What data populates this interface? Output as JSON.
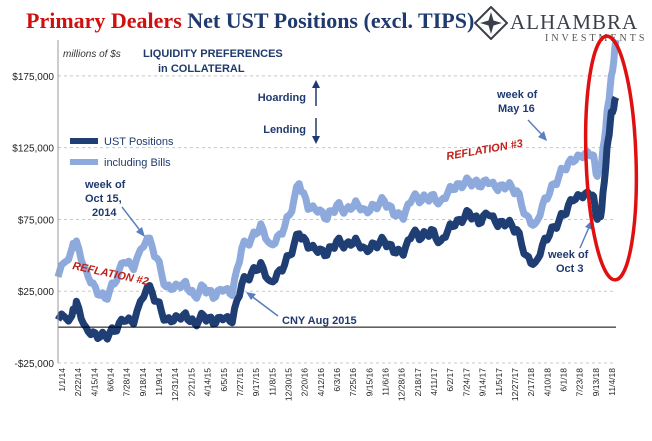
{
  "header": {
    "title_part1": "Primary Dealers",
    "title_part2": "Net UST Positions (excl. TIPS)",
    "logo_name": "ALHAMBRA",
    "logo_sub": "INVESTMENTS",
    "logo_icon": "diamond-star-icon"
  },
  "colors": {
    "dark_series": "#1f3e73",
    "light_series": "#8eaadc",
    "title_red": "#d01010",
    "title_blue": "#1f3a6e",
    "annotation_red": "#c0201a",
    "annotation_blue": "#1f3a6e",
    "circle": "#e01010",
    "grid": "#c8c8c8"
  },
  "chart_data": {
    "type": "area",
    "unit_note": "millions of $s",
    "ylim": [
      -25000,
      200000
    ],
    "yticks": [
      -25000,
      25000,
      75000,
      125000,
      175000
    ],
    "ytick_labels": [
      "-$25,000",
      "$25,000",
      "$75,000",
      "$125,000",
      "$175,000"
    ],
    "grid": "horizontal dashed",
    "x_start": "2014-01-01",
    "x_end": "2018-11-30",
    "xtick_labels": [
      "1/1/14",
      "2/22/14",
      "4/15/14",
      "6/6/14",
      "7/28/14",
      "9/18/14",
      "11/9/14",
      "12/31/14",
      "2/21/15",
      "4/14/15",
      "6/5/15",
      "7/27/15",
      "9/17/15",
      "11/8/15",
      "12/30/15",
      "2/20/16",
      "4/12/16",
      "6/3/16",
      "7/25/16",
      "9/15/16",
      "11/6/16",
      "12/28/16",
      "2/18/17",
      "4/11/17",
      "6/2/17",
      "7/24/17",
      "9/14/17",
      "11/5/17",
      "12/27/17",
      "2/17/18",
      "4/10/18",
      "6/1/18",
      "7/23/18",
      "9/13/18",
      "11/4/18"
    ],
    "legend": {
      "position": "left-middle",
      "entries": [
        "UST Positions",
        "including Bills"
      ]
    },
    "series": [
      {
        "name": "UST Positions",
        "x": [
          "2014-01-01",
          "2014-02-15",
          "2014-03-01",
          "2014-04-01",
          "2014-05-01",
          "2014-06-01",
          "2014-07-01",
          "2014-08-01",
          "2014-09-01",
          "2014-10-15",
          "2014-11-15",
          "2014-12-15",
          "2015-01-15",
          "2015-02-15",
          "2015-03-15",
          "2015-04-15",
          "2015-05-15",
          "2015-06-15",
          "2015-07-15",
          "2015-08-15",
          "2015-09-15",
          "2015-10-15",
          "2015-11-15",
          "2015-12-15",
          "2016-01-15",
          "2016-02-15",
          "2016-03-15",
          "2016-04-15",
          "2016-05-15",
          "2016-06-15",
          "2016-07-15",
          "2016-08-15",
          "2016-09-15",
          "2016-10-15",
          "2016-11-15",
          "2016-12-15",
          "2017-01-15",
          "2017-02-15",
          "2017-03-15",
          "2017-04-15",
          "2017-05-15",
          "2017-06-15",
          "2017-07-15",
          "2017-08-15",
          "2017-09-15",
          "2017-10-15",
          "2017-11-15",
          "2017-12-15",
          "2018-01-15",
          "2018-02-15",
          "2018-03-15",
          "2018-04-15",
          "2018-05-15",
          "2018-06-15",
          "2018-07-15",
          "2018-08-15",
          "2018-09-15",
          "2018-10-01",
          "2018-10-15",
          "2018-11-01",
          "2018-11-15",
          "2018-11-30"
        ],
        "values": [
          5000,
          8000,
          18000,
          0,
          -4000,
          -6000,
          -3000,
          4000,
          2000,
          28000,
          18000,
          5000,
          8000,
          10000,
          3000,
          8000,
          2000,
          5000,
          3000,
          30000,
          38000,
          45000,
          32000,
          40000,
          50000,
          65000,
          55000,
          52000,
          50000,
          60000,
          58000,
          62000,
          55000,
          58000,
          60000,
          52000,
          50000,
          65000,
          62000,
          68000,
          60000,
          72000,
          75000,
          80000,
          72000,
          78000,
          70000,
          72000,
          68000,
          50000,
          45000,
          62000,
          70000,
          78000,
          88000,
          90000,
          92000,
          75000,
          82000,
          125000,
          150000,
          160000
        ]
      },
      {
        "name": "including Bills",
        "x": [
          "2014-01-01",
          "2014-02-15",
          "2014-03-01",
          "2014-04-01",
          "2014-05-01",
          "2014-06-01",
          "2014-07-01",
          "2014-08-01",
          "2014-09-01",
          "2014-10-15",
          "2014-11-15",
          "2014-12-15",
          "2015-01-15",
          "2015-02-15",
          "2015-03-15",
          "2015-04-15",
          "2015-05-15",
          "2015-06-15",
          "2015-07-15",
          "2015-08-15",
          "2015-09-15",
          "2015-10-15",
          "2015-11-15",
          "2015-12-15",
          "2016-01-15",
          "2016-02-15",
          "2016-03-15",
          "2016-04-15",
          "2016-05-15",
          "2016-06-15",
          "2016-07-15",
          "2016-08-15",
          "2016-09-15",
          "2016-10-15",
          "2016-11-15",
          "2016-12-15",
          "2017-01-15",
          "2017-02-15",
          "2017-03-15",
          "2017-04-15",
          "2017-05-15",
          "2017-06-15",
          "2017-07-15",
          "2017-08-15",
          "2017-09-15",
          "2017-10-15",
          "2017-11-15",
          "2017-12-15",
          "2018-01-15",
          "2018-02-15",
          "2018-03-15",
          "2018-04-15",
          "2018-05-15",
          "2018-06-15",
          "2018-07-15",
          "2018-08-15",
          "2018-09-15",
          "2018-10-01",
          "2018-10-15",
          "2018-11-01",
          "2018-11-15",
          "2018-11-30"
        ],
        "values": [
          35000,
          55000,
          60000,
          40000,
          28000,
          20000,
          30000,
          45000,
          40000,
          62000,
          48000,
          28000,
          30000,
          32000,
          22000,
          28000,
          20000,
          25000,
          22000,
          55000,
          62000,
          72000,
          58000,
          65000,
          78000,
          100000,
          82000,
          80000,
          75000,
          85000,
          82000,
          88000,
          82000,
          85000,
          88000,
          78000,
          75000,
          90000,
          88000,
          92000,
          88000,
          98000,
          100000,
          102000,
          98000,
          100000,
          95000,
          98000,
          95000,
          78000,
          72000,
          90000,
          100000,
          110000,
          115000,
          118000,
          120000,
          105000,
          115000,
          150000,
          175000,
          200000
        ]
      }
    ],
    "annotations": {
      "liquidity_title_1": "LIQUIDITY PREFERENCES",
      "liquidity_title_2": "in COLLATERAL",
      "hoarding": "Hoarding",
      "lending": "Lending",
      "oct_2014_1": "week of",
      "oct_2014_2": "Oct 15,",
      "oct_2014_3": "2014",
      "reflation_2": "REFLATION #2",
      "cny": "CNY Aug 2015",
      "reflation_3": "REFLATION #3",
      "may16_1": "week of",
      "may16_2": "May 16",
      "oct3_1": "week of",
      "oct3_2": "Oct 3"
    }
  }
}
